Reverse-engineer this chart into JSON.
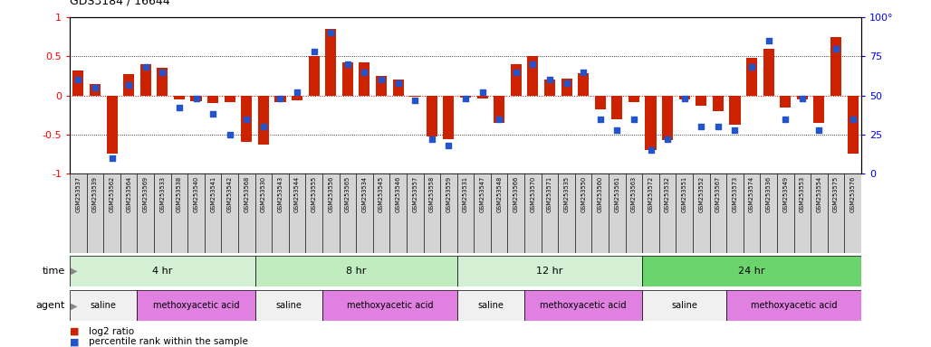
{
  "title": "GDS3184 / 16644",
  "samples": [
    "GSM253537",
    "GSM253539",
    "GSM253562",
    "GSM253564",
    "GSM253569",
    "GSM253533",
    "GSM253538",
    "GSM253540",
    "GSM253541",
    "GSM253542",
    "GSM253568",
    "GSM253530",
    "GSM253543",
    "GSM253544",
    "GSM253555",
    "GSM253556",
    "GSM253565",
    "GSM253534",
    "GSM253545",
    "GSM253546",
    "GSM253557",
    "GSM253558",
    "GSM253559",
    "GSM253531",
    "GSM253547",
    "GSM253548",
    "GSM253566",
    "GSM253570",
    "GSM253571",
    "GSM253535",
    "GSM253550",
    "GSM253560",
    "GSM253561",
    "GSM253563",
    "GSM253572",
    "GSM253532",
    "GSM253551",
    "GSM253552",
    "GSM253567",
    "GSM253573",
    "GSM253574",
    "GSM253536",
    "GSM253549",
    "GSM253553",
    "GSM253554",
    "GSM253575",
    "GSM253576"
  ],
  "log2_ratio": [
    0.32,
    0.15,
    -0.75,
    0.27,
    0.4,
    0.35,
    -0.05,
    -0.07,
    -0.1,
    -0.08,
    -0.6,
    -0.63,
    -0.08,
    -0.06,
    0.5,
    0.85,
    0.42,
    0.42,
    0.25,
    0.2,
    -0.02,
    -0.52,
    -0.56,
    -0.03,
    -0.04,
    -0.35,
    0.4,
    0.5,
    0.2,
    0.22,
    0.28,
    -0.18,
    -0.3,
    -0.08,
    -0.7,
    -0.57,
    -0.05,
    -0.13,
    -0.2,
    -0.38,
    0.48,
    0.6,
    -0.15,
    -0.05,
    -0.35,
    0.75,
    -0.75
  ],
  "percentile_rank": [
    60,
    55,
    10,
    57,
    68,
    65,
    42,
    48,
    38,
    25,
    35,
    30,
    48,
    52,
    78,
    90,
    70,
    65,
    60,
    58,
    47,
    22,
    18,
    48,
    52,
    35,
    65,
    70,
    60,
    58,
    65,
    35,
    28,
    35,
    15,
    22,
    48,
    30,
    30,
    28,
    68,
    85,
    35,
    48,
    28,
    80,
    35
  ],
  "time_groups": [
    {
      "label": "4 hr",
      "start": 0,
      "end": 11,
      "color": "#d4f0d4"
    },
    {
      "label": "8 hr",
      "start": 11,
      "end": 23,
      "color": "#c0ecc0"
    },
    {
      "label": "12 hr",
      "start": 23,
      "end": 34,
      "color": "#d4f0d4"
    },
    {
      "label": "24 hr",
      "start": 34,
      "end": 47,
      "color": "#6cd46c"
    }
  ],
  "agent_groups": [
    {
      "label": "saline",
      "start": 0,
      "end": 4,
      "color": "#f0f0f0"
    },
    {
      "label": "methoxyacetic acid",
      "start": 4,
      "end": 11,
      "color": "#e080e0"
    },
    {
      "label": "saline",
      "start": 11,
      "end": 15,
      "color": "#f0f0f0"
    },
    {
      "label": "methoxyacetic acid",
      "start": 15,
      "end": 23,
      "color": "#e080e0"
    },
    {
      "label": "saline",
      "start": 23,
      "end": 27,
      "color": "#f0f0f0"
    },
    {
      "label": "methoxyacetic acid",
      "start": 27,
      "end": 34,
      "color": "#e080e0"
    },
    {
      "label": "saline",
      "start": 34,
      "end": 39,
      "color": "#f0f0f0"
    },
    {
      "label": "methoxyacetic acid",
      "start": 39,
      "end": 47,
      "color": "#e080e0"
    }
  ],
  "bar_color": "#cc2200",
  "dot_color": "#2255cc",
  "ylim": [
    -1,
    1
  ],
  "y2lim": [
    0,
    100
  ],
  "yticks_left": [
    -1,
    -0.5,
    0,
    0.5,
    1
  ],
  "ytick_labels_left": [
    "-1",
    "-0.5",
    "0",
    "0.5",
    "1"
  ],
  "yticks_right": [
    0,
    25,
    50,
    75,
    100
  ],
  "ytick_labels_right": [
    "0",
    "25",
    "50",
    "75",
    "100°"
  ],
  "hline_dotted": [
    -0.5,
    0.5
  ],
  "hline_zero_color": "#cc0000",
  "background_color": "#ffffff"
}
